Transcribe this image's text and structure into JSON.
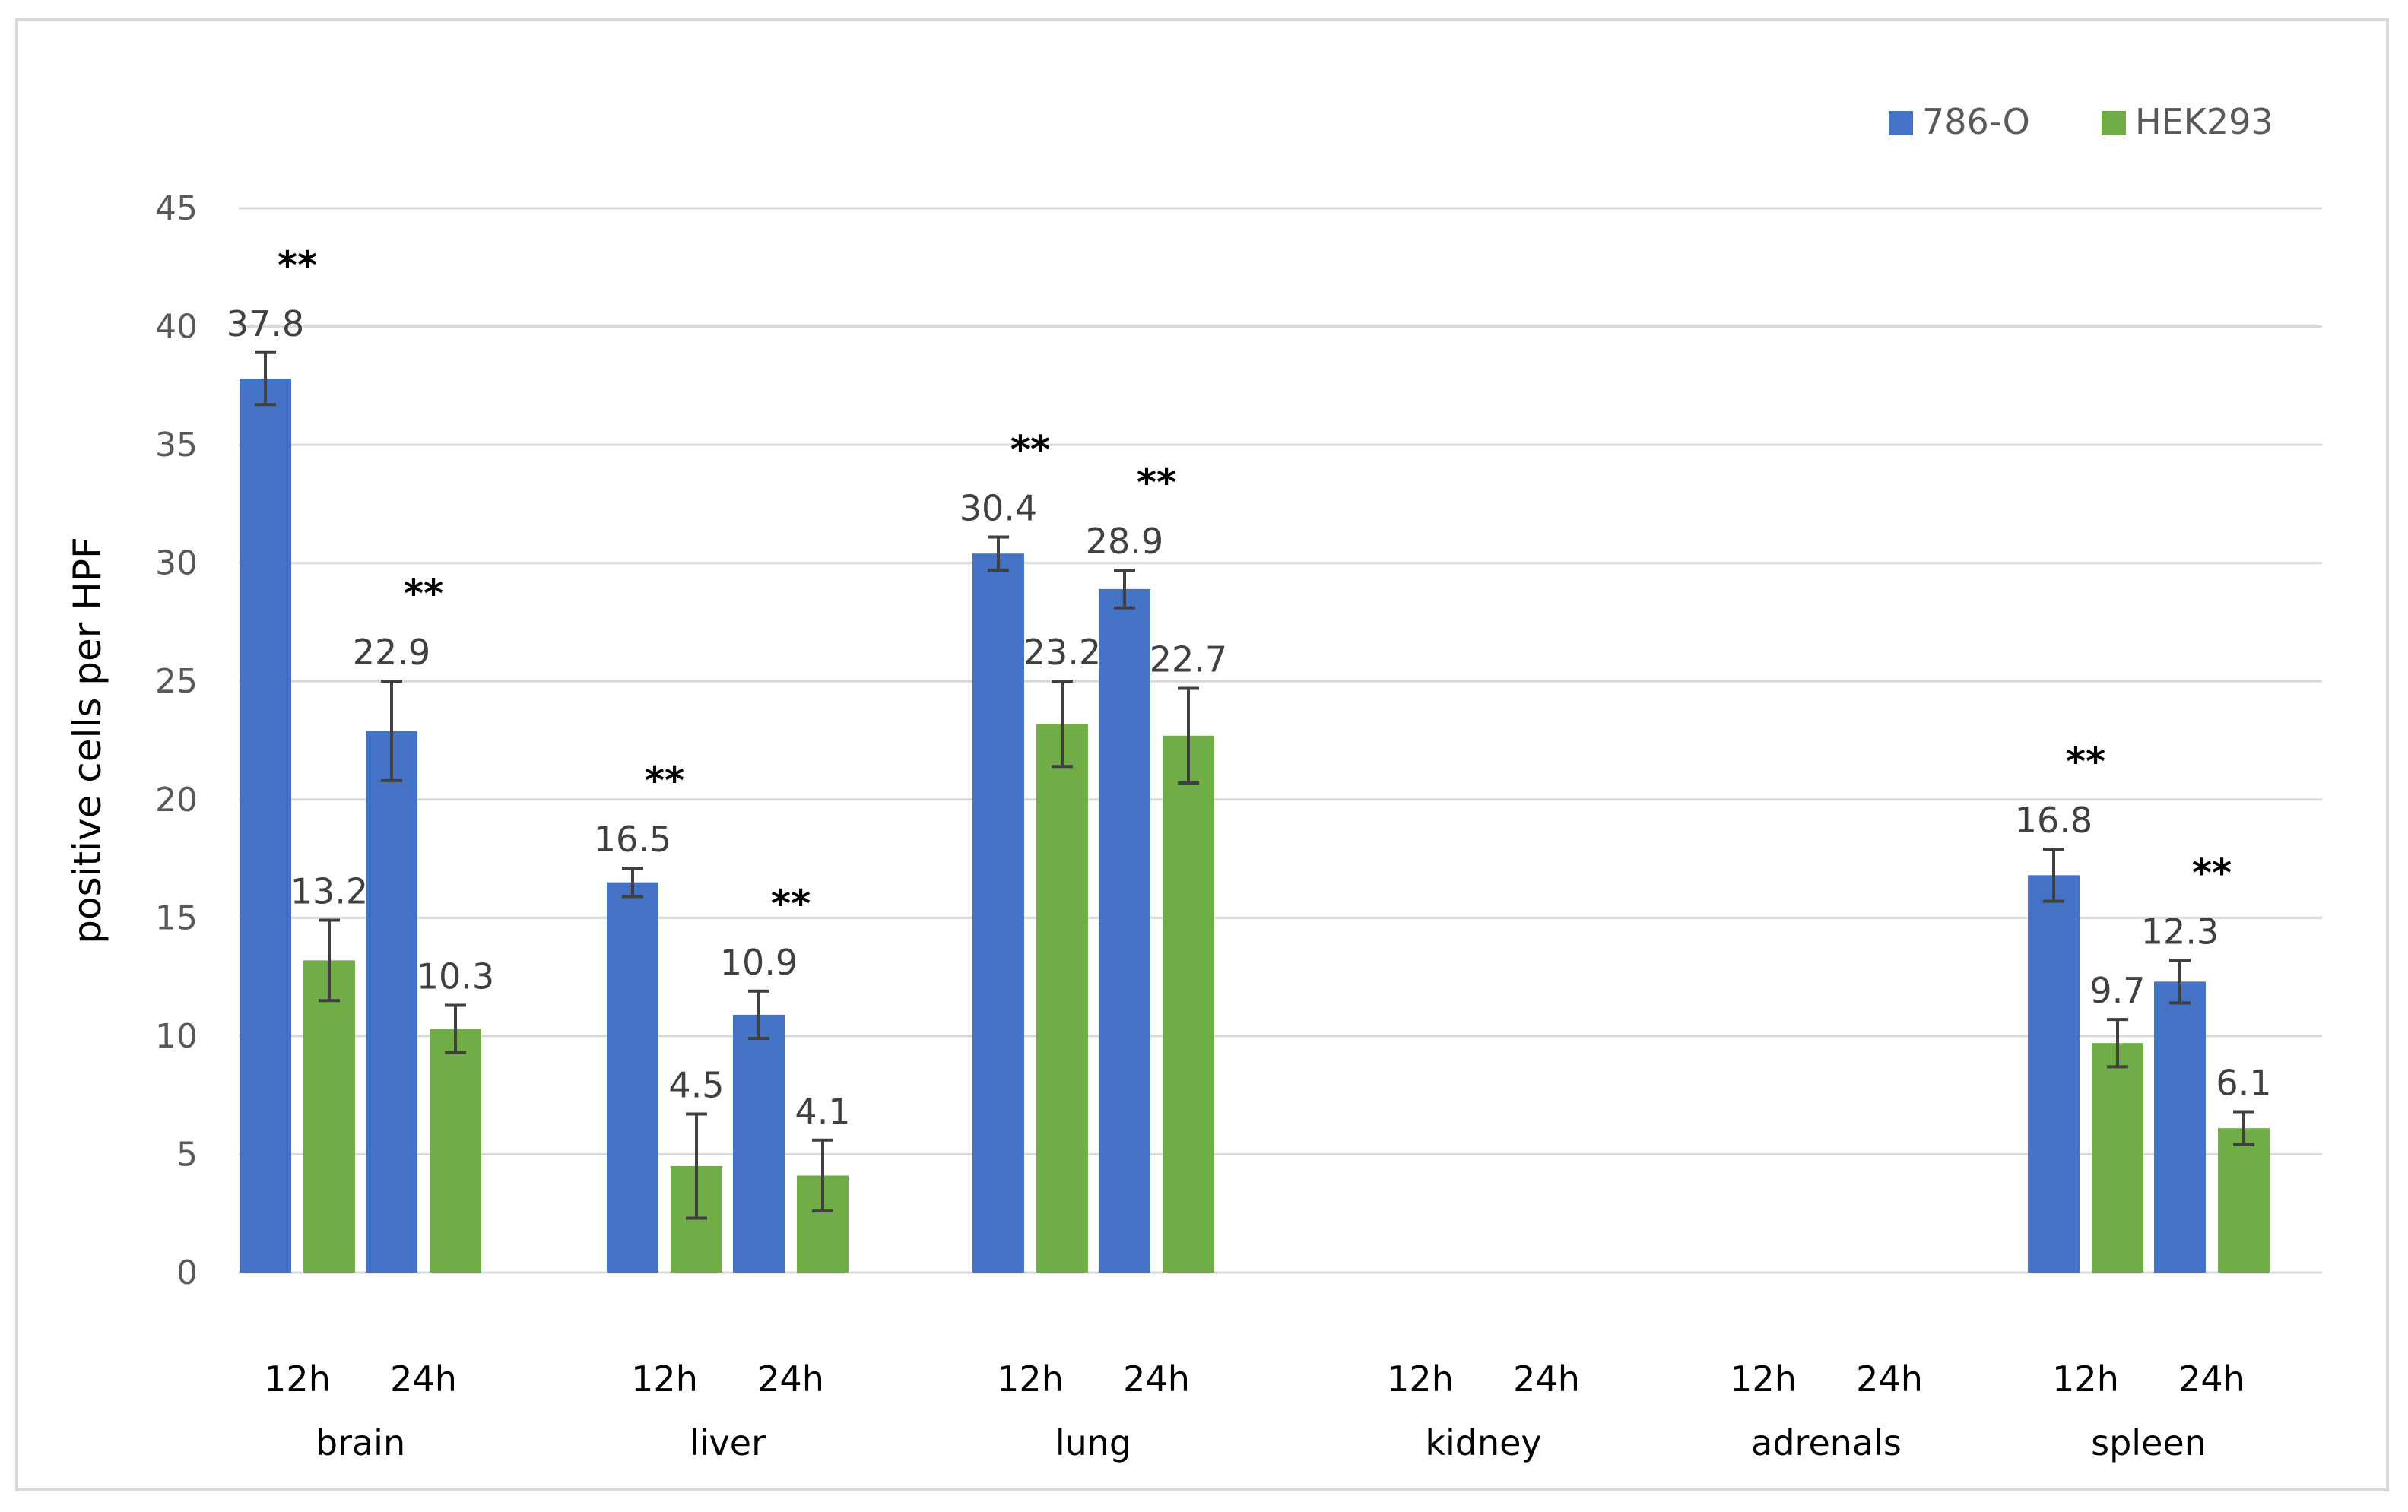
{
  "chart_data": {
    "type": "bar",
    "title": "",
    "xlabel": "",
    "ylabel": "positive cells per HPF",
    "ylim": [
      0,
      45
    ],
    "yticks": [
      0,
      5,
      10,
      15,
      20,
      25,
      30,
      35,
      40,
      45
    ],
    "grid": true,
    "legend_position": "top-right",
    "categories": [
      "brain",
      "liver",
      "lung",
      "kidney",
      "adrenals",
      "spleen"
    ],
    "timepoints": [
      "12h",
      "24h"
    ],
    "series": [
      {
        "name": "786-O",
        "color": "#4472C4",
        "values": [
          [
            37.8,
            22.9
          ],
          [
            16.5,
            10.9
          ],
          [
            30.4,
            28.9
          ],
          [
            null,
            null
          ],
          [
            null,
            null
          ],
          [
            16.8,
            12.3
          ]
        ],
        "errors": [
          [
            1.1,
            2.1
          ],
          [
            0.6,
            1.0
          ],
          [
            0.7,
            0.8
          ],
          [
            null,
            null
          ],
          [
            null,
            null
          ],
          [
            1.1,
            0.9
          ]
        ]
      },
      {
        "name": "HEK293",
        "color": "#70AD47",
        "values": [
          [
            13.2,
            10.3
          ],
          [
            4.5,
            4.1
          ],
          [
            23.2,
            22.7
          ],
          [
            null,
            null
          ],
          [
            null,
            null
          ],
          [
            9.7,
            6.1
          ]
        ],
        "errors": [
          [
            1.7,
            1.0
          ],
          [
            2.2,
            1.5
          ],
          [
            1.8,
            2.0
          ],
          [
            null,
            null
          ],
          [
            null,
            null
          ],
          [
            1.0,
            0.7
          ]
        ]
      }
    ],
    "significance_marker": "**",
    "significance": [
      [
        true,
        true
      ],
      [
        true,
        true
      ],
      [
        true,
        true
      ],
      [
        false,
        false
      ],
      [
        false,
        false
      ],
      [
        true,
        true
      ]
    ]
  }
}
